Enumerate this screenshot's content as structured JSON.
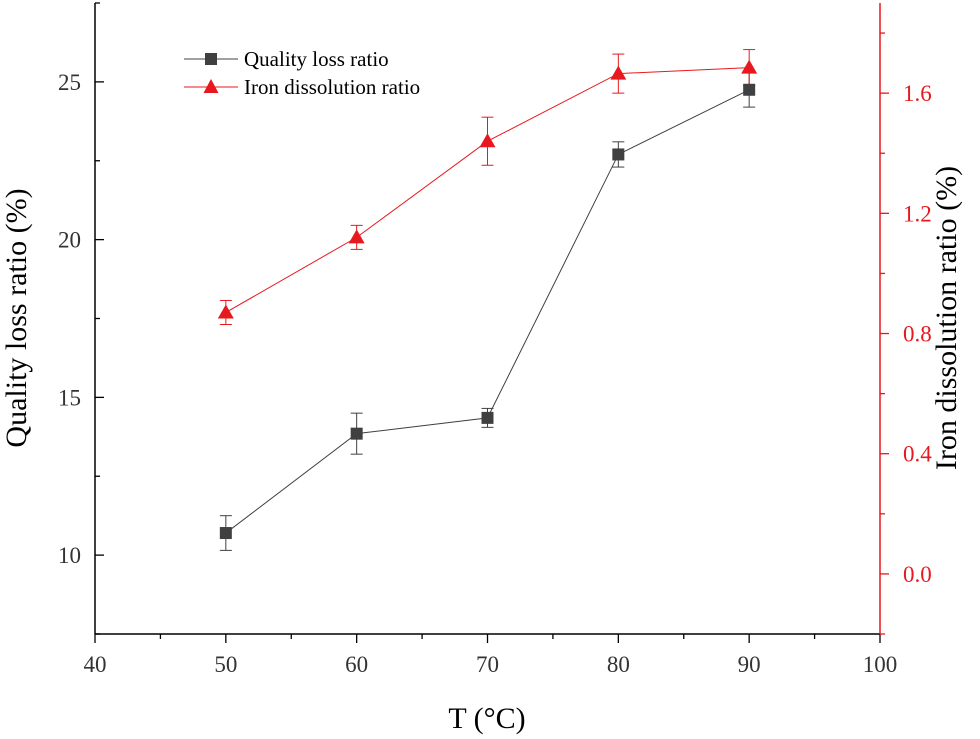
{
  "chart_data": {
    "type": "line",
    "xlabel": "T (°C)",
    "ylabel_left": "Quality loss ratio (%)",
    "ylabel_right": "Iron dissolution ratio (%)",
    "xlim": [
      40,
      100
    ],
    "ylim_left": [
      7.5,
      27.5
    ],
    "ylim_right": [
      -0.2,
      1.9
    ],
    "x_ticks": [
      40,
      50,
      60,
      70,
      80,
      90,
      100
    ],
    "y_left_ticks": [
      10,
      15,
      20,
      25
    ],
    "y_right_ticks": [
      "0.0",
      "0.4",
      "0.8",
      "1.2",
      "1.6"
    ],
    "legend_position": "top-left",
    "series": [
      {
        "name": "Quality loss ratio",
        "axis": "left",
        "color": "#404040",
        "marker": "square",
        "x": [
          50,
          60,
          70,
          80,
          90
        ],
        "y": [
          10.7,
          13.85,
          14.35,
          22.7,
          24.75
        ],
        "err": [
          0.55,
          0.65,
          0.3,
          0.4,
          0.55
        ]
      },
      {
        "name": "Iron dissolution ratio",
        "axis": "right",
        "color": "#e8191e",
        "marker": "triangle",
        "x": [
          50,
          60,
          70,
          80,
          90
        ],
        "y": [
          0.87,
          1.12,
          1.44,
          1.665,
          1.685
        ],
        "err": [
          0.04,
          0.04,
          0.08,
          0.065,
          0.06
        ]
      }
    ]
  }
}
